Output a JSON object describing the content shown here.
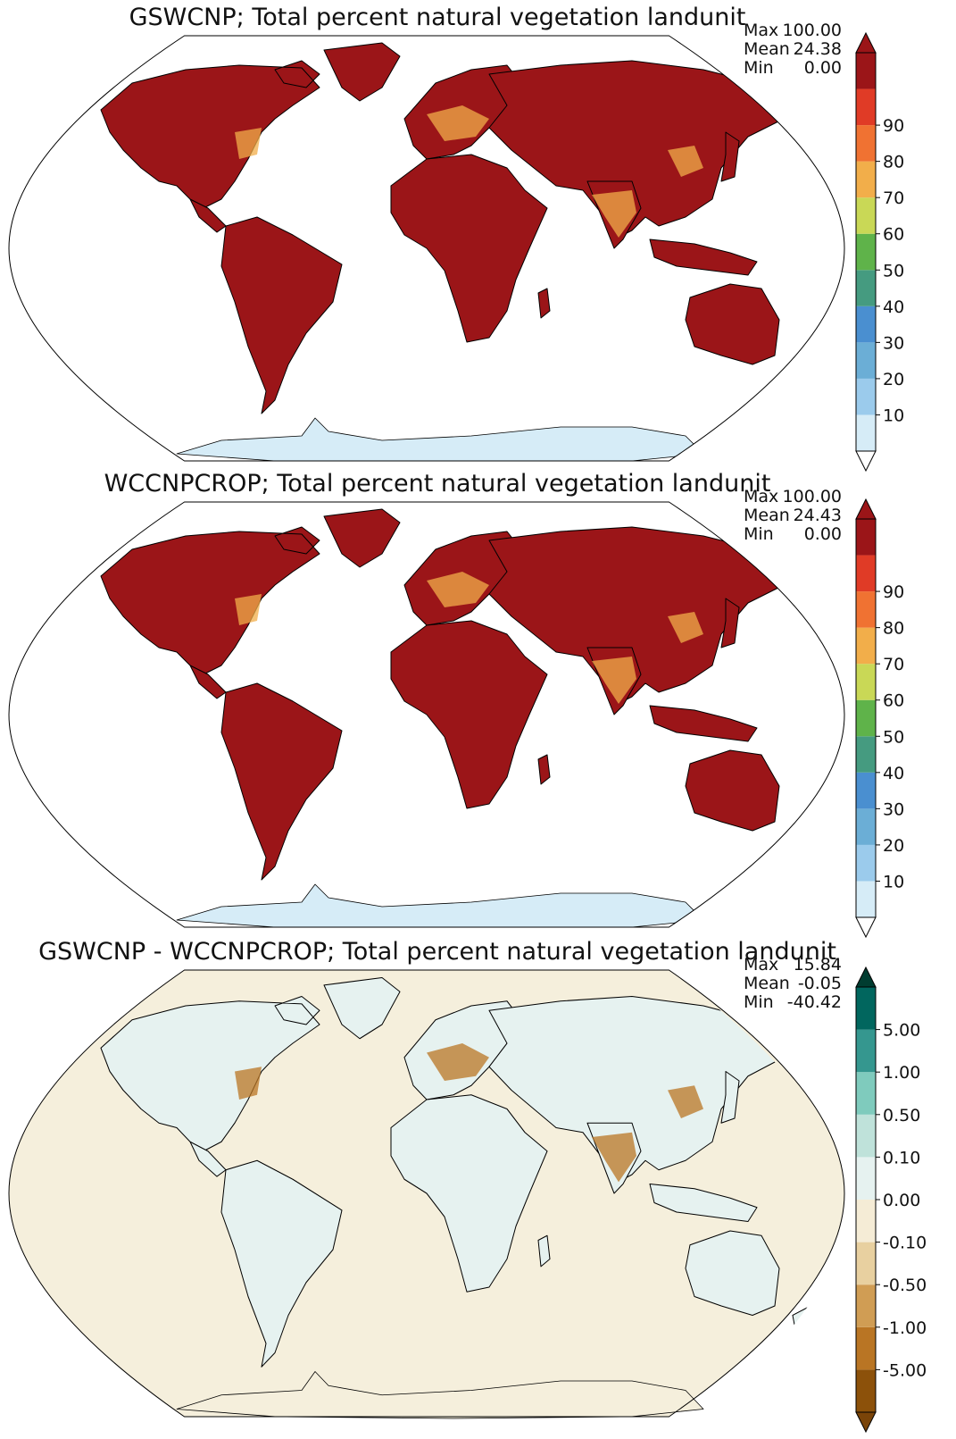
{
  "panels": [
    {
      "title": "GSWCNP; Total percent natural vegetation landunit",
      "stats": [
        {
          "label": "Max",
          "value": "100.00"
        },
        {
          "label": "Mean",
          "value": "24.38"
        },
        {
          "label": "Min",
          "value": "0.00"
        }
      ],
      "colorbar": {
        "colors": [
          "#d6ecf7",
          "#9bcbec",
          "#6baed6",
          "#4a8fd0",
          "#459b80",
          "#5fb34a",
          "#c9d856",
          "#f2ae4a",
          "#f07232",
          "#e03b26",
          "#9b1518"
        ],
        "ticks": [
          "10",
          "20",
          "30",
          "40",
          "50",
          "60",
          "70",
          "80",
          "90"
        ],
        "extend_low": "#ffffff",
        "extend_high": "#9b1518"
      },
      "map": {
        "land": "#9b1518",
        "ocean": "#ffffff",
        "antarctica": "#d6ecf7",
        "hotspot": "#f2ae4a"
      }
    },
    {
      "title": "WCCNPCROP; Total percent natural vegetation landunit",
      "stats": [
        {
          "label": "Max",
          "value": "100.00"
        },
        {
          "label": "Mean",
          "value": "24.43"
        },
        {
          "label": "Min",
          "value": "0.00"
        }
      ],
      "colorbar": {
        "colors": [
          "#d6ecf7",
          "#9bcbec",
          "#6baed6",
          "#4a8fd0",
          "#459b80",
          "#5fb34a",
          "#c9d856",
          "#f2ae4a",
          "#f07232",
          "#e03b26",
          "#9b1518"
        ],
        "ticks": [
          "10",
          "20",
          "30",
          "40",
          "50",
          "60",
          "70",
          "80",
          "90"
        ],
        "extend_low": "#ffffff",
        "extend_high": "#9b1518"
      },
      "map": {
        "land": "#9b1518",
        "ocean": "#ffffff",
        "antarctica": "#d6ecf7",
        "hotspot": "#f2ae4a"
      }
    },
    {
      "title": "GSWCNP - WCCNPCROP; Total percent natural vegetation landunit",
      "stats": [
        {
          "label": "Max",
          "value": "15.84"
        },
        {
          "label": "Mean",
          "value": "-0.05"
        },
        {
          "label": "Min",
          "value": "-40.42"
        }
      ],
      "colorbar": {
        "colors": [
          "#8c510a",
          "#b97524",
          "#d09d54",
          "#e8d0a0",
          "#f5ecd6",
          "#e6f2f0",
          "#bfe2da",
          "#7fcbbd",
          "#35978f",
          "#01665e"
        ],
        "ticks": [
          "-5.00",
          "-1.00",
          "-0.50",
          "-0.10",
          "0.00",
          "0.10",
          "0.50",
          "1.00",
          "5.00"
        ],
        "extend_low": "#7a4408",
        "extend_high": "#003c30"
      },
      "map": {
        "land": "#e6f2f0",
        "ocean": "#f5efdc",
        "antarctica": "#f5efdc",
        "hotspot": "#b97524"
      }
    }
  ]
}
